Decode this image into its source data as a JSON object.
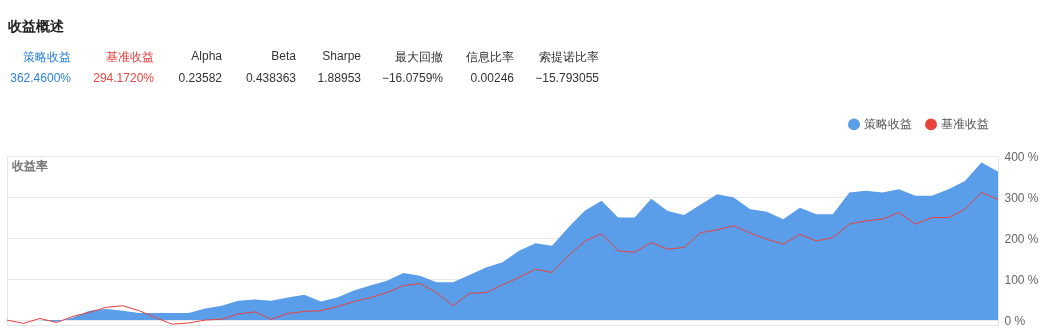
{
  "chart_data": [
    {
      "type": "other",
      "title": "收益概述",
      "annotations": [
        "策略收益",
        "基准收益",
        "Alpha",
        "Beta",
        "Sharpe",
        "最大回撤",
        "信息比率",
        "索提诺比率",
        "362.4600%",
        "294.1720%",
        "0.23582",
        "0.438363",
        "1.88953",
        "−16.0759%",
        "0.00246",
        "−15.793055"
      ],
      "colors": [
        "#2b7fd6",
        "#e8423f",
        "#333333",
        "#333333",
        "#333333",
        "#333333",
        "#333333",
        "#333333"
      ]
    },
    {
      "type": "area",
      "ylabel": "收益率",
      "categories": [
        null,
        null,
        null,
        null,
        null,
        null,
        null,
        null,
        null,
        null,
        null,
        null,
        null,
        null,
        null,
        null,
        null,
        null,
        null,
        null,
        null,
        null,
        null,
        null,
        null,
        null,
        null,
        null,
        null,
        null,
        null,
        null,
        null,
        null,
        null,
        null,
        null,
        null,
        null,
        null,
        null,
        null,
        null,
        null,
        null,
        null,
        null,
        null,
        null,
        null,
        null,
        null,
        null,
        null,
        null,
        null,
        null,
        null,
        null,
        null,
        null
      ],
      "series": [
        {
          "name": "策略收益",
          "type": "area",
          "color": "#5a9de8",
          "values": [
            0,
            0,
            0,
            -4,
            6,
            23,
            27,
            23,
            17,
            17,
            17,
            17,
            28,
            35,
            47,
            50,
            47,
            55,
            62,
            45,
            55,
            72,
            84,
            96,
            115,
            108,
            92,
            92,
            110,
            128,
            141,
            169,
            187,
            181,
            226,
            267,
            291,
            250,
            250,
            296,
            266,
            256,
            282,
            307,
            299,
            270,
            264,
            246,
            274,
            258,
            258,
            311,
            315,
            311,
            319,
            303,
            303,
            319,
            339,
            384,
            362
          ]
        },
        {
          "name": "基准收益",
          "type": "line",
          "color": "#e8423f",
          "values": [
            0,
            -8,
            4,
            -6,
            9,
            19,
            31,
            35,
            23,
            6,
            -10,
            -7,
            0,
            2,
            15,
            20,
            2,
            16,
            21,
            23,
            33,
            45,
            55,
            67,
            84,
            89,
            67,
            35,
            65,
            67,
            86,
            104,
            124,
            116,
            157,
            193,
            210,
            169,
            165,
            189,
            173,
            177,
            213,
            220,
            230,
            212,
            197,
            185,
            209,
            193,
            201,
            234,
            242,
            246,
            262,
            234,
            250,
            250,
            270,
            311,
            294
          ]
        }
      ],
      "ylim": [
        -12,
        400
      ],
      "yticks": [
        {
          "value": 0,
          "label": "0 %"
        },
        {
          "value": 100,
          "label": "100 %"
        },
        {
          "value": 200,
          "label": "200 %"
        },
        {
          "value": 300,
          "label": "300 %"
        },
        {
          "value": 400,
          "label": "400 %"
        }
      ],
      "grid": "y",
      "legend": "top right",
      "tick_labels": "y"
    }
  ]
}
